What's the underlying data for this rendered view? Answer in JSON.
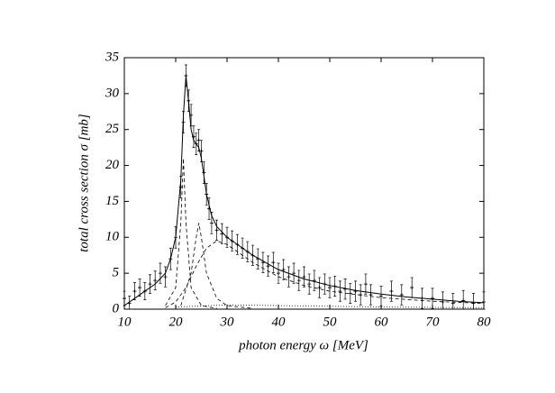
{
  "chart_data": {
    "type": "scatter",
    "xlabel": "photon energy ω [MeV]",
    "ylabel": "total cross section  σ [mb]",
    "xlim": [
      10,
      80
    ],
    "xticks": [
      10,
      20,
      30,
      40,
      50,
      60,
      70,
      80
    ],
    "ylim": [
      0,
      35
    ],
    "yticks": [
      0,
      5,
      10,
      15,
      20,
      25,
      30,
      35
    ],
    "color": "#000000",
    "series": [
      {
        "style": "points",
        "x": [
          10,
          11,
          12,
          13,
          14,
          15,
          16,
          17,
          18,
          19,
          20,
          21,
          21.5,
          22,
          22.5,
          23,
          23.5,
          24,
          24.5,
          25,
          25.5,
          26,
          26.5,
          27,
          28,
          29,
          30,
          31,
          32,
          33,
          34,
          35,
          36,
          37,
          38,
          39,
          40,
          41,
          42,
          43,
          44,
          45,
          46,
          47,
          48,
          49,
          50,
          51,
          52,
          53,
          54,
          55,
          56,
          57,
          58,
          60,
          62,
          64,
          66,
          68,
          70,
          72,
          74,
          76,
          78,
          80
        ],
        "values": [
          1.5,
          0.8,
          2.5,
          3,
          2.5,
          3.5,
          4,
          5,
          4.5,
          7,
          10,
          17,
          26,
          32.5,
          29,
          27,
          24,
          23,
          23.5,
          22,
          19,
          16,
          14,
          12,
          11,
          10.5,
          10,
          9.5,
          9,
          8.5,
          8,
          7.5,
          7,
          6.5,
          6,
          6.5,
          5,
          5.5,
          4.5,
          5,
          4,
          4.5,
          3.5,
          4,
          3,
          3.5,
          3,
          3.2,
          2.5,
          2.8,
          2.2,
          2.5,
          2,
          3.5,
          2,
          1.8,
          2.5,
          2,
          3,
          1.5,
          1.5,
          1,
          0.8,
          1.2,
          0.8,
          1
        ],
        "errors": [
          1,
          1,
          1.2,
          1.2,
          1.2,
          1.3,
          1.3,
          1.4,
          1.4,
          1.5,
          1.5,
          1.5,
          1.5,
          1.5,
          1.5,
          1.5,
          1.5,
          1.5,
          1.5,
          1.5,
          1.5,
          1.5,
          1.5,
          1.5,
          1.4,
          1.4,
          1.4,
          1.4,
          1.4,
          1.4,
          1.4,
          1.4,
          1.4,
          1.4,
          1.4,
          1.4,
          1.4,
          1.4,
          1.4,
          1.4,
          1.4,
          1.4,
          1.4,
          1.4,
          1.4,
          1.4,
          1.4,
          1.4,
          1.4,
          1.4,
          1.4,
          1.4,
          1.4,
          1.4,
          1.4,
          1.4,
          1.4,
          1.4,
          1.4,
          1.4,
          1.4,
          1.4,
          1.4,
          1.4,
          1.4,
          1.4
        ]
      },
      {
        "style": "solid",
        "x": [
          10,
          12,
          14,
          16,
          18,
          19,
          20,
          21,
          21.5,
          22,
          22.5,
          23,
          23.5,
          24,
          24.5,
          25,
          26,
          27,
          28,
          30,
          32,
          35,
          40,
          45,
          50,
          55,
          60,
          65,
          70,
          75,
          80
        ],
        "values": [
          0.5,
          1.5,
          2.5,
          3.5,
          5,
          7,
          10,
          18,
          27,
          32.5,
          29,
          25,
          23.5,
          23,
          22.5,
          21,
          16,
          13,
          11.5,
          10,
          9,
          7.5,
          5.5,
          4.2,
          3.3,
          2.6,
          2.1,
          1.7,
          1.4,
          1.1,
          0.9
        ]
      },
      {
        "style": "dashed",
        "x": [
          18,
          20,
          21,
          21.5,
          22,
          23,
          25,
          28
        ],
        "values": [
          0.5,
          3,
          12,
          21,
          12,
          3,
          0.5,
          0.1
        ]
      },
      {
        "style": "dashed",
        "x": [
          21,
          23,
          24,
          24.5,
          25,
          26,
          28,
          30,
          35
        ],
        "values": [
          0.5,
          5,
          10,
          12,
          10,
          5,
          1.5,
          0.5,
          0.1
        ]
      },
      {
        "style": "dashed",
        "x": [
          18,
          20,
          22,
          24,
          26,
          28,
          30,
          32,
          35,
          40,
          45,
          50,
          60,
          70,
          80
        ],
        "values": [
          0.2,
          1,
          3,
          6,
          8.5,
          9.5,
          9,
          8,
          6.5,
          4.5,
          3.3,
          2.5,
          1.6,
          1.1,
          0.8
        ]
      },
      {
        "style": "dotted",
        "x": [
          20,
          30,
          40,
          60,
          80
        ],
        "values": [
          0.3,
          0.6,
          0.5,
          0.3,
          0.2
        ]
      }
    ]
  }
}
